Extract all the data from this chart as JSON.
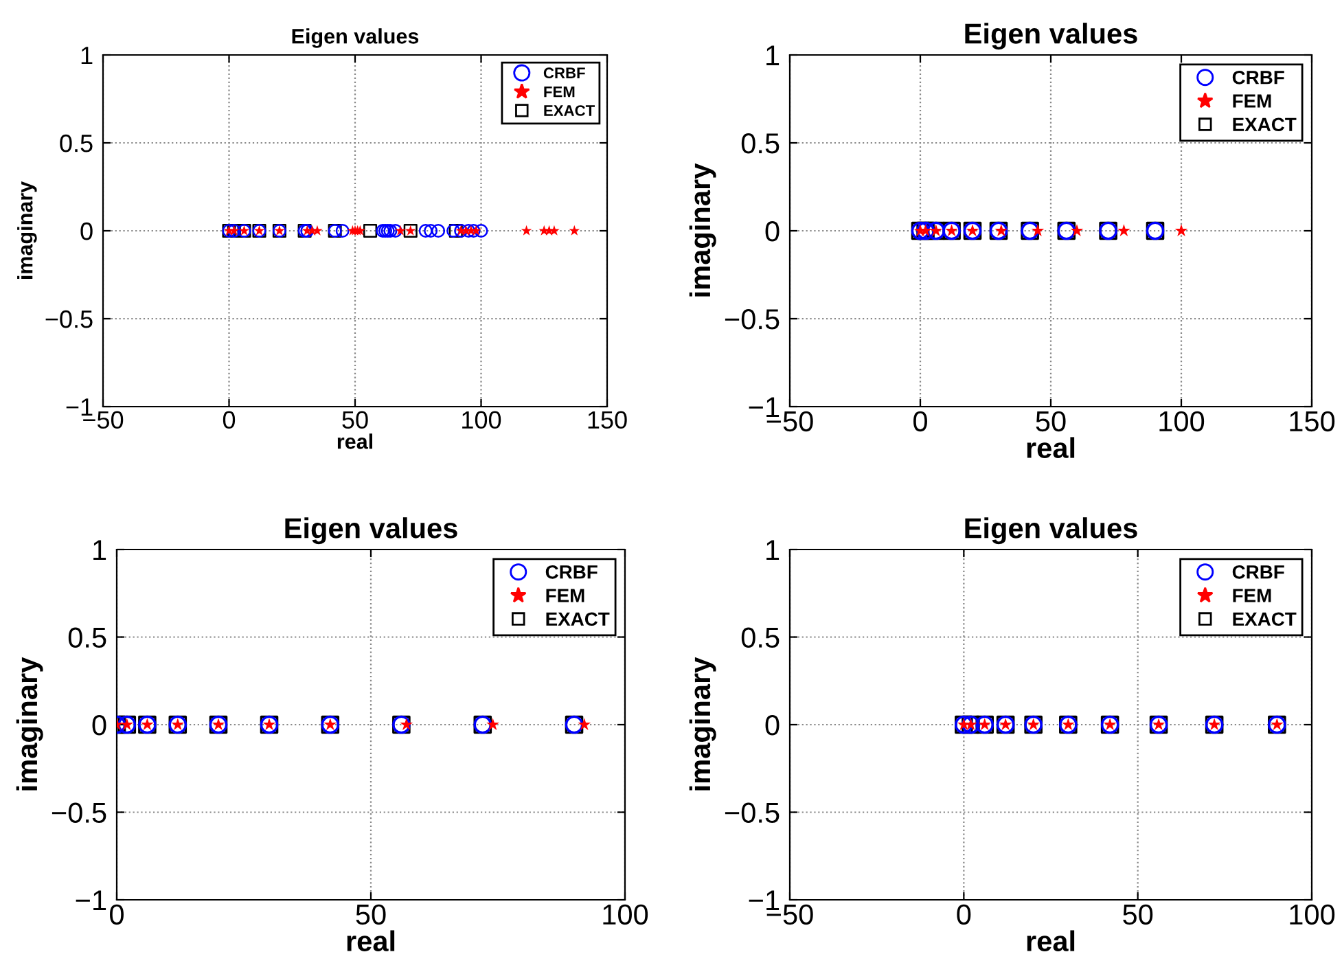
{
  "chart_data": [
    {
      "type": "scatter",
      "title": "Eigen values",
      "xlabel": "real",
      "ylabel": "imaginary",
      "xlim": [
        -50,
        150
      ],
      "xticks": [
        -50,
        0,
        50,
        100,
        150
      ],
      "ylim": [
        -1,
        1
      ],
      "yticks": [
        -1,
        -0.5,
        0,
        0.5,
        1
      ],
      "grid": true,
      "legend": "top right",
      "series": [
        {
          "name": "CRBF",
          "color": "#0000ff",
          "marker": "circle",
          "x": [
            0,
            2,
            6,
            12,
            20,
            30,
            31,
            42,
            45,
            61,
            62,
            63,
            64,
            66,
            78,
            80,
            83,
            89,
            92,
            95,
            97,
            100
          ],
          "values": [
            0,
            0,
            0,
            0,
            0,
            0,
            0,
            0,
            0,
            0,
            0,
            0,
            0,
            0,
            0,
            0,
            0,
            0,
            0,
            0,
            0,
            0
          ]
        },
        {
          "name": "FEM",
          "color": "#ff0000",
          "marker": "star",
          "x": [
            0,
            2,
            6,
            12,
            20,
            31,
            33,
            35,
            49,
            50,
            51,
            52,
            68,
            72,
            92,
            94,
            96,
            98,
            118,
            125,
            127,
            129,
            137
          ],
          "values": [
            0,
            0,
            0,
            0,
            0,
            0,
            0,
            0,
            0,
            0,
            0,
            0,
            0,
            0,
            0,
            0,
            0,
            0,
            0,
            0,
            0,
            0,
            0
          ]
        },
        {
          "name": "EXACT",
          "color": "#000000",
          "marker": "square",
          "x": [
            0,
            2,
            6,
            12,
            20,
            30,
            42,
            56,
            72,
            90
          ],
          "values": [
            0,
            0,
            0,
            0,
            0,
            0,
            0,
            0,
            0,
            0
          ]
        }
      ]
    },
    {
      "type": "scatter",
      "title": "Eigen values",
      "xlabel": "real",
      "ylabel": "imaginary",
      "xlim": [
        -50,
        150
      ],
      "xticks": [
        -50,
        0,
        50,
        100,
        150
      ],
      "ylim": [
        -1,
        1
      ],
      "yticks": [
        -1,
        -0.5,
        0,
        0.5,
        1
      ],
      "grid": true,
      "legend": "top right",
      "series": [
        {
          "name": "CRBF",
          "color": "#0000ff",
          "marker": "circle",
          "x": [
            0,
            2,
            6,
            12,
            20,
            30,
            42,
            56,
            72,
            90
          ],
          "values": [
            0,
            0,
            0,
            0,
            0,
            0,
            0,
            0,
            0,
            0
          ]
        },
        {
          "name": "FEM",
          "color": "#ff0000",
          "marker": "star",
          "x": [
            0,
            2,
            6,
            12,
            20,
            31,
            45,
            60,
            78,
            100
          ],
          "values": [
            0,
            0,
            0,
            0,
            0,
            0,
            0,
            0,
            0,
            0
          ]
        },
        {
          "name": "EXACT",
          "color": "#000000",
          "marker": "square",
          "x": [
            0,
            2,
            6,
            12,
            20,
            30,
            42,
            56,
            72,
            90
          ],
          "values": [
            0,
            0,
            0,
            0,
            0,
            0,
            0,
            0,
            0,
            0
          ]
        }
      ]
    },
    {
      "type": "scatter",
      "title": "Eigen values",
      "xlabel": "real",
      "ylabel": "imaginary",
      "xlim": [
        0,
        100
      ],
      "xticks": [
        0,
        50,
        100
      ],
      "ylim": [
        -1,
        1
      ],
      "yticks": [
        -1,
        -0.5,
        0,
        0.5,
        1
      ],
      "grid": true,
      "legend": "top right",
      "series": [
        {
          "name": "CRBF",
          "color": "#0000ff",
          "marker": "circle",
          "x": [
            0,
            2,
            6,
            12,
            20,
            30,
            42,
            56,
            72,
            90
          ],
          "values": [
            0,
            0,
            0,
            0,
            0,
            0,
            0,
            0,
            0,
            0
          ]
        },
        {
          "name": "FEM",
          "color": "#ff0000",
          "marker": "star",
          "x": [
            0,
            2,
            6,
            12,
            20,
            30,
            42,
            57,
            74,
            92
          ],
          "values": [
            0,
            0,
            0,
            0,
            0,
            0,
            0,
            0,
            0,
            0
          ]
        },
        {
          "name": "EXACT",
          "color": "#000000",
          "marker": "square",
          "x": [
            0,
            2,
            6,
            12,
            20,
            30,
            42,
            56,
            72,
            90
          ],
          "values": [
            0,
            0,
            0,
            0,
            0,
            0,
            0,
            0,
            0,
            0
          ]
        }
      ]
    },
    {
      "type": "scatter",
      "title": "Eigen values",
      "xlabel": "real",
      "ylabel": "imaginary",
      "xlim": [
        -50,
        100
      ],
      "xticks": [
        -50,
        0,
        50,
        100
      ],
      "ylim": [
        -1,
        1
      ],
      "yticks": [
        -1,
        -0.5,
        0,
        0.5,
        1
      ],
      "grid": true,
      "legend": "top right",
      "series": [
        {
          "name": "CRBF",
          "color": "#0000ff",
          "marker": "circle",
          "x": [
            0,
            2,
            6,
            12,
            20,
            30,
            42,
            56,
            72,
            90
          ],
          "values": [
            0,
            0,
            0,
            0,
            0,
            0,
            0,
            0,
            0,
            0
          ]
        },
        {
          "name": "FEM",
          "color": "#ff0000",
          "marker": "star",
          "x": [
            0,
            2,
            6,
            12,
            20,
            30,
            42,
            56,
            72,
            90
          ],
          "values": [
            0,
            0,
            0,
            0,
            0,
            0,
            0,
            0,
            0,
            0
          ]
        },
        {
          "name": "EXACT",
          "color": "#000000",
          "marker": "square",
          "x": [
            0,
            2,
            6,
            12,
            20,
            30,
            42,
            56,
            72,
            90
          ],
          "values": [
            0,
            0,
            0,
            0,
            0,
            0,
            0,
            0,
            0,
            0
          ]
        }
      ]
    }
  ]
}
